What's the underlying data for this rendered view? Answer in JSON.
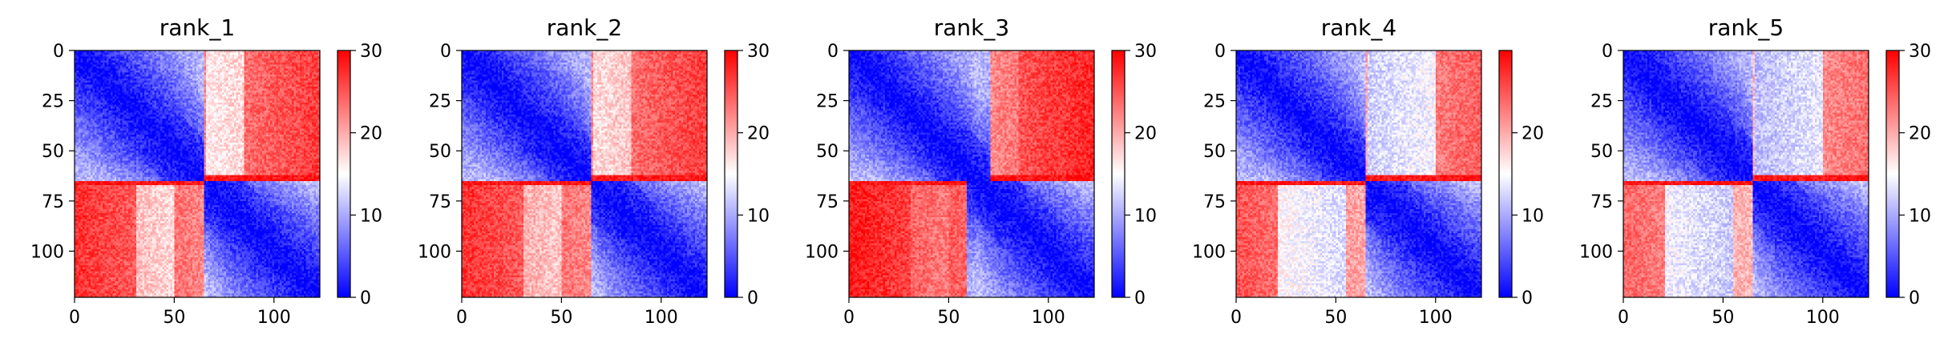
{
  "chart_data": [
    {
      "type": "heatmap",
      "title": "rank_1",
      "rows": 123,
      "cols": 123,
      "split": 65,
      "x_ticks": [
        0,
        50,
        100
      ],
      "y_ticks": [
        0,
        25,
        50,
        75,
        100
      ],
      "xlim": [
        0,
        123
      ],
      "ylim": [
        123,
        0
      ],
      "colorbar": {
        "ticks": [
          0,
          10,
          20,
          30
        ],
        "range": [
          0,
          30
        ],
        "colormap": "bwr"
      },
      "pattern": {
        "offdiag_level": 22,
        "inner_dip": 6,
        "inner_range": [
          30,
          50
        ],
        "stripe_row": 64,
        "boundary_shift": 0
      }
    },
    {
      "type": "heatmap",
      "title": "rank_2",
      "rows": 123,
      "cols": 123,
      "split": 65,
      "x_ticks": [
        0,
        50,
        100
      ],
      "y_ticks": [
        0,
        25,
        50,
        75,
        100
      ],
      "xlim": [
        0,
        123
      ],
      "ylim": [
        123,
        0
      ],
      "colorbar": {
        "ticks": [
          0,
          10,
          20,
          30
        ],
        "range": [
          0,
          30
        ],
        "colormap": "bwr"
      },
      "pattern": {
        "offdiag_level": 22,
        "inner_dip": 5,
        "inner_range": [
          30,
          50
        ],
        "stripe_row": 64,
        "boundary_shift": 0
      }
    },
    {
      "type": "heatmap",
      "title": "rank_3",
      "rows": 123,
      "cols": 123,
      "split": 65,
      "x_ticks": [
        0,
        50,
        100
      ],
      "y_ticks": [
        0,
        25,
        50,
        75,
        100
      ],
      "xlim": [
        0,
        123
      ],
      "ylim": [
        123,
        0
      ],
      "colorbar": {
        "ticks": [
          0,
          10,
          20,
          30
        ],
        "range": [
          0,
          30
        ],
        "colormap": "bwr"
      },
      "pattern": {
        "offdiag_level": 24,
        "inner_dip": 2,
        "inner_range": [
          30,
          50
        ],
        "stripe_row": 64,
        "boundary_shift": 6
      }
    },
    {
      "type": "heatmap",
      "title": "rank_4",
      "rows": 123,
      "cols": 123,
      "split": 65,
      "x_ticks": [
        0,
        50,
        100
      ],
      "y_ticks": [
        0,
        25,
        50,
        75,
        100
      ],
      "xlim": [
        0,
        123
      ],
      "ylim": [
        123,
        0
      ],
      "colorbar": {
        "ticks": [
          0,
          10,
          20
        ],
        "range": [
          0,
          30
        ],
        "colormap": "bwr"
      },
      "pattern": {
        "offdiag_level": 20,
        "inner_dip": 8,
        "inner_range": [
          20,
          55
        ],
        "stripe_row": 64,
        "boundary_shift": 0
      }
    },
    {
      "type": "heatmap",
      "title": "rank_5",
      "rows": 123,
      "cols": 123,
      "split": 65,
      "x_ticks": [
        0,
        50,
        100
      ],
      "y_ticks": [
        0,
        25,
        50,
        75,
        100
      ],
      "xlim": [
        0,
        123
      ],
      "ylim": [
        123,
        0
      ],
      "colorbar": {
        "ticks": [
          0,
          10,
          20,
          30
        ],
        "range": [
          0,
          30
        ],
        "colormap": "bwr"
      },
      "pattern": {
        "offdiag_level": 19,
        "inner_dip": 8,
        "inner_range": [
          20,
          55
        ],
        "stripe_row": 64,
        "boundary_shift": 0
      }
    }
  ]
}
